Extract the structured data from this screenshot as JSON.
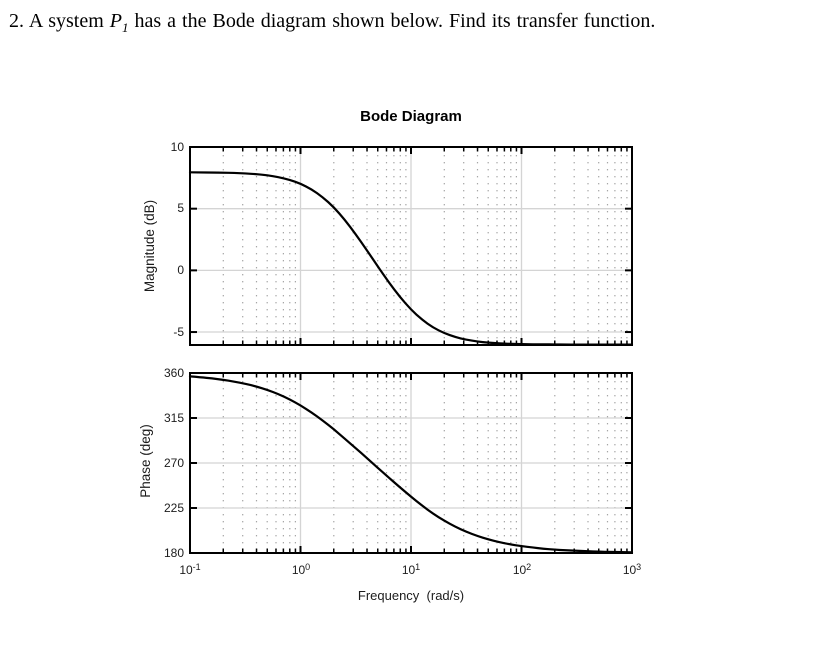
{
  "question": {
    "number": "2.",
    "before_var": " A system ",
    "var": "P",
    "var_sub": "1",
    "after_var": " has a the Bode diagram shown below. Find its transfer function."
  },
  "chart_data": {
    "type": "line",
    "title": "Bode Diagram",
    "xlabel": "Frequency  (rad/s)",
    "x_scale": "log",
    "x_unit": "rad/s",
    "x_range": [
      0.1,
      1000
    ],
    "grid": true,
    "minor_grid": true,
    "legend": "none",
    "line_color": "#000000",
    "axis_color": "#000000",
    "major_grid_color": "#d4d4d4",
    "minor_grid_color": "#a6a6a6",
    "x_tick_values": [
      0.1,
      1,
      10,
      100,
      1000
    ],
    "x_tick_labels": [
      {
        "base": "10",
        "exp": "-1"
      },
      {
        "base": "10",
        "exp": "0"
      },
      {
        "base": "10",
        "exp": "1"
      },
      {
        "base": "10",
        "exp": "2"
      },
      {
        "base": "10",
        "exp": "3"
      }
    ],
    "x": [
      0.1,
      0.126,
      0.158,
      0.2,
      0.251,
      0.316,
      0.398,
      0.501,
      0.631,
      0.794,
      1,
      1.26,
      1.58,
      2,
      2.51,
      3.16,
      3.98,
      5.01,
      6.31,
      7.94,
      10,
      12.6,
      15.8,
      20,
      25.1,
      31.6,
      39.8,
      50.1,
      63.1,
      79.4,
      100,
      126,
      158,
      200,
      251,
      316,
      398,
      501,
      631,
      794,
      1000
    ],
    "subplots": [
      {
        "name": "magnitude",
        "ylabel": "Magnitude (dB)",
        "ylim": [
          -6.05,
          10
        ],
        "yticks": [
          10,
          5,
          0,
          -5
        ],
        "start_level_db": 8,
        "end_level_db": -6,
        "values": [
          7.95,
          7.94,
          7.93,
          7.92,
          7.9,
          7.86,
          7.8,
          7.71,
          7.56,
          7.35,
          7.03,
          6.57,
          5.95,
          5.13,
          4.11,
          2.93,
          1.64,
          0.31,
          -0.98,
          -2.16,
          -3.18,
          -4.0,
          -4.63,
          -5.09,
          -5.41,
          -5.62,
          -5.77,
          -5.86,
          -5.92,
          -5.96,
          -5.98,
          -5.99,
          -6.0,
          -6.01,
          -6.01,
          -6.02,
          -6.02,
          -6.02,
          -6.02,
          -6.02,
          -6.02
        ]
      },
      {
        "name": "phase",
        "ylabel": "Phase (deg)",
        "ylim": [
          180,
          360
        ],
        "yticks": [
          360,
          315,
          270,
          225,
          180
        ],
        "start_level_deg": 360,
        "end_level_deg": 180,
        "values": [
          356.6,
          355.7,
          354.6,
          353.2,
          351.4,
          349.2,
          346.5,
          343.1,
          338.9,
          333.8,
          327.7,
          320.6,
          312.6,
          303.8,
          294.4,
          284.8,
          275.0,
          265.1,
          255.3,
          245.7,
          236.3,
          227.5,
          219.4,
          212.3,
          206.3,
          201.2,
          197.0,
          193.6,
          190.8,
          188.6,
          186.9,
          185.5,
          184.3,
          183.4,
          182.7,
          182.2,
          181.7,
          181.4,
          181.1,
          180.9,
          180.7
        ]
      }
    ]
  }
}
